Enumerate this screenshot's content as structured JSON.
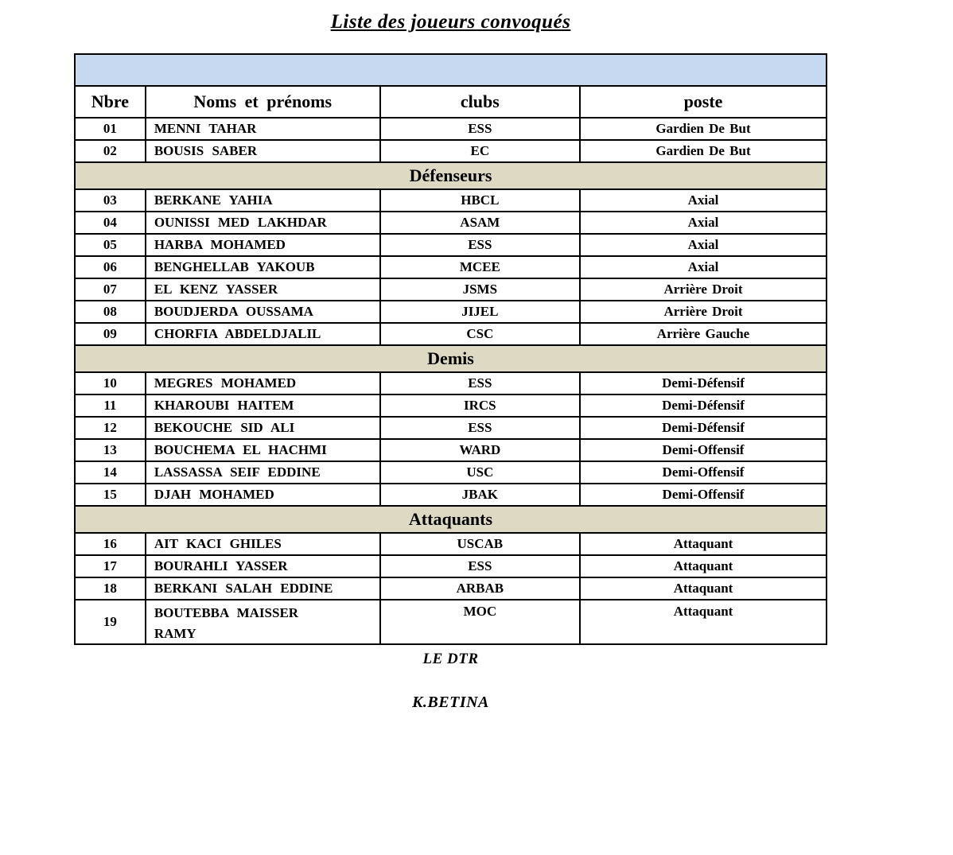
{
  "page": {
    "title": "Liste des joueurs convoqués"
  },
  "colors": {
    "top_band_blue": "#c6d9f0",
    "section_beige": "#ddd9c3",
    "border": "#000000",
    "background": "#ffffff"
  },
  "table": {
    "columns": [
      "Nbre",
      "Noms et prénoms",
      "clubs",
      "poste"
    ],
    "rows": [
      {
        "type": "player",
        "num": "01",
        "name": "MENNI TAHAR",
        "club": "ESS",
        "poste": "Gardien De But"
      },
      {
        "type": "player",
        "num": "02",
        "name": "BOUSIS SABER",
        "club": "EC",
        "poste": "Gardien De But"
      },
      {
        "type": "section",
        "label": "Défenseurs"
      },
      {
        "type": "player",
        "num": "03",
        "name": "BERKANE YAHIA",
        "club": "HBCL",
        "poste": "Axial"
      },
      {
        "type": "player",
        "num": "04",
        "name": "OUNISSI MED LAKHDAR",
        "club": "ASAM",
        "poste": "Axial"
      },
      {
        "type": "player",
        "num": "05",
        "name": "HARBA MOHAMED",
        "club": "ESS",
        "poste": "Axial"
      },
      {
        "type": "player",
        "num": "06",
        "name": "BENGHELLAB YAKOUB",
        "club": "MCEE",
        "poste": "Axial"
      },
      {
        "type": "player",
        "num": "07",
        "name": "EL KENZ YASSER",
        "club": "JSMS",
        "poste": "Arrière Droit"
      },
      {
        "type": "player",
        "num": "08",
        "name": "BOUDJERDA OUSSAMA",
        "club": "JIJEL",
        "poste": "Arrière Droit"
      },
      {
        "type": "player",
        "num": "09",
        "name": "CHORFIA ABDELDJALIL",
        "club": "CSC",
        "poste": "Arrière Gauche"
      },
      {
        "type": "section",
        "label": "Demis"
      },
      {
        "type": "player",
        "num": "10",
        "name": "MEGRES MOHAMED",
        "club": "ESS",
        "poste": "Demi-Défensif"
      },
      {
        "type": "player",
        "num": "11",
        "name": "KHAROUBI HAITEM",
        "club": "IRCS",
        "poste": "Demi-Défensif"
      },
      {
        "type": "player",
        "num": "12",
        "name": "BEKOUCHE SID ALI",
        "club": "ESS",
        "poste": "Demi-Défensif"
      },
      {
        "type": "player",
        "num": "13",
        "name": "BOUCHEMA EL HACHMI",
        "club": "WARD",
        "poste": "Demi-Offensif"
      },
      {
        "type": "player",
        "num": "14",
        "name": "LASSASSA SEIF EDDINE",
        "club": "USC",
        "poste": "Demi-Offensif"
      },
      {
        "type": "player",
        "num": "15",
        "name": "DJAH MOHAMED",
        "club": "JBAK",
        "poste": "Demi-Offensif"
      },
      {
        "type": "section",
        "label": "Attaquants"
      },
      {
        "type": "player",
        "num": "16",
        "name": "AIT KACI GHILES",
        "club": "USCAB",
        "poste": "Attaquant"
      },
      {
        "type": "player",
        "num": "17",
        "name": "BOURAHLI YASSER",
        "club": "ESS",
        "poste": "Attaquant"
      },
      {
        "type": "player",
        "num": "18",
        "name": "BERKANI SALAH EDDINE",
        "club": "ARBAB",
        "poste": "Attaquant"
      },
      {
        "type": "player",
        "num": "19",
        "name": "BOUTEBBA MAISSER\nRAMY",
        "club": "MOC",
        "poste": "Attaquant"
      }
    ]
  },
  "footer": {
    "role_line": "LE DTR",
    "signature": "K.BETINA"
  }
}
